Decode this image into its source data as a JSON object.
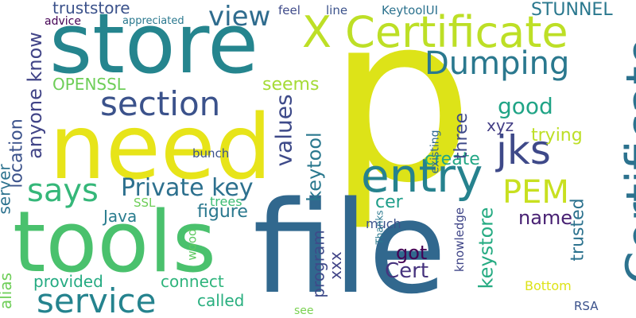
{
  "palette": {
    "yellow": "#dde318",
    "lime": "#b5de2b",
    "green": "#5ec962",
    "teal": "#21918c",
    "teal_blue": "#2c728e",
    "blue": "#3b528b",
    "indigo": "#414487",
    "purple": "#440154",
    "light_green": "#a5db36"
  },
  "words": [
    {
      "text": "p",
      "color": "#dde318",
      "vertical": false
    },
    {
      "text": "file",
      "color": "#31688e",
      "vertical": false
    },
    {
      "text": "need",
      "color": "#e7e419",
      "vertical": false
    },
    {
      "text": "store",
      "color": "#25858e",
      "vertical": false
    },
    {
      "text": "tools",
      "color": "#4ac16d",
      "vertical": false
    },
    {
      "text": "X Certificate",
      "color": "#bddf26",
      "vertical": false
    },
    {
      "text": "Certificate",
      "color": "#2c728e",
      "vertical": true
    },
    {
      "text": "Dumping",
      "color": "#2a788e",
      "vertical": false
    },
    {
      "text": "entry",
      "color": "#26828e",
      "vertical": false
    },
    {
      "text": "section",
      "color": "#3b528b",
      "vertical": false
    },
    {
      "text": "service",
      "color": "#25838e",
      "vertical": false
    },
    {
      "text": "says",
      "color": "#35b779",
      "vertical": false
    },
    {
      "text": "jks",
      "color": "#3e4989",
      "vertical": false
    },
    {
      "text": "PEM",
      "color": "#c8e020",
      "vertical": false
    },
    {
      "text": "Private key",
      "color": "#2d708e",
      "vertical": false
    },
    {
      "text": "values",
      "color": "#3e4a89",
      "vertical": true
    },
    {
      "text": "view",
      "color": "#2f6c8e",
      "vertical": false
    },
    {
      "text": "truststore",
      "color": "#3b528b",
      "vertical": false
    },
    {
      "text": "STUNNEL",
      "color": "#2a788e",
      "vertical": false
    },
    {
      "text": "KeytoolUI",
      "color": "#2c728e",
      "vertical": false
    },
    {
      "text": "OPENSSL",
      "color": "#6ece58",
      "vertical": false
    },
    {
      "text": "good",
      "color": "#20a486",
      "vertical": false
    },
    {
      "text": "anyone know",
      "color": "#414487",
      "vertical": true
    },
    {
      "text": "location",
      "color": "#3b528b",
      "vertical": true
    },
    {
      "text": "server",
      "color": "#2c728e",
      "vertical": true
    },
    {
      "text": "alias",
      "color": "#6ece58",
      "vertical": true
    },
    {
      "text": "seems",
      "color": "#a5db36",
      "vertical": false
    },
    {
      "text": "keytool",
      "color": "#2a788e",
      "vertical": true
    },
    {
      "text": "create",
      "color": "#22a785",
      "vertical": false
    },
    {
      "text": "trying",
      "color": "#bddf26",
      "vertical": false
    },
    {
      "text": "xyz",
      "color": "#433e85",
      "vertical": false
    },
    {
      "text": "three",
      "color": "#3e4a89",
      "vertical": true
    },
    {
      "text": "name",
      "color": "#482173",
      "vertical": false
    },
    {
      "text": "figure",
      "color": "#2a788e",
      "vertical": false
    },
    {
      "text": "Java",
      "color": "#287c8e",
      "vertical": false
    },
    {
      "text": "cer",
      "color": "#1f9e89",
      "vertical": false
    },
    {
      "text": "got",
      "color": "#440154",
      "vertical": false
    },
    {
      "text": "Cert",
      "color": "#46337e",
      "vertical": false
    },
    {
      "text": "keystore",
      "color": "#25ab82",
      "vertical": true
    },
    {
      "text": "trusted",
      "color": "#2c728e",
      "vertical": true
    },
    {
      "text": "program",
      "color": "#3e4a89",
      "vertical": true
    },
    {
      "text": "xxx",
      "color": "#414487",
      "vertical": true
    },
    {
      "text": "provided",
      "color": "#25ab82",
      "vertical": false
    },
    {
      "text": "connect",
      "color": "#2fb47c",
      "vertical": false
    },
    {
      "text": "called",
      "color": "#29af7f",
      "vertical": false
    },
    {
      "text": "knowledge",
      "color": "#404688",
      "vertical": true
    },
    {
      "text": "existing",
      "color": "#31688e",
      "vertical": true
    },
    {
      "text": "much",
      "color": "#3b528b",
      "vertical": false
    },
    {
      "text": "Thanks",
      "color": "#2a788e",
      "vertical": true
    },
    {
      "text": "Bottom",
      "color": "#dde318",
      "vertical": false
    },
    {
      "text": "RSA",
      "color": "#3b528b",
      "vertical": false
    },
    {
      "text": "see",
      "color": "#7ad151",
      "vertical": false
    },
    {
      "text": "wood",
      "color": "#5ec962",
      "vertical": true
    },
    {
      "text": "SSL",
      "color": "#6ece58",
      "vertical": false
    },
    {
      "text": "trees",
      "color": "#3dbc74",
      "vertical": false
    },
    {
      "text": "bunch",
      "color": "#3b528b",
      "vertical": false
    },
    {
      "text": "line",
      "color": "#3b528b",
      "vertical": false
    },
    {
      "text": "feel",
      "color": "#3e4a89",
      "vertical": false
    },
    {
      "text": "appreciated",
      "color": "#2a788e",
      "vertical": false
    },
    {
      "text": "advice",
      "color": "#440154",
      "vertical": false
    }
  ]
}
